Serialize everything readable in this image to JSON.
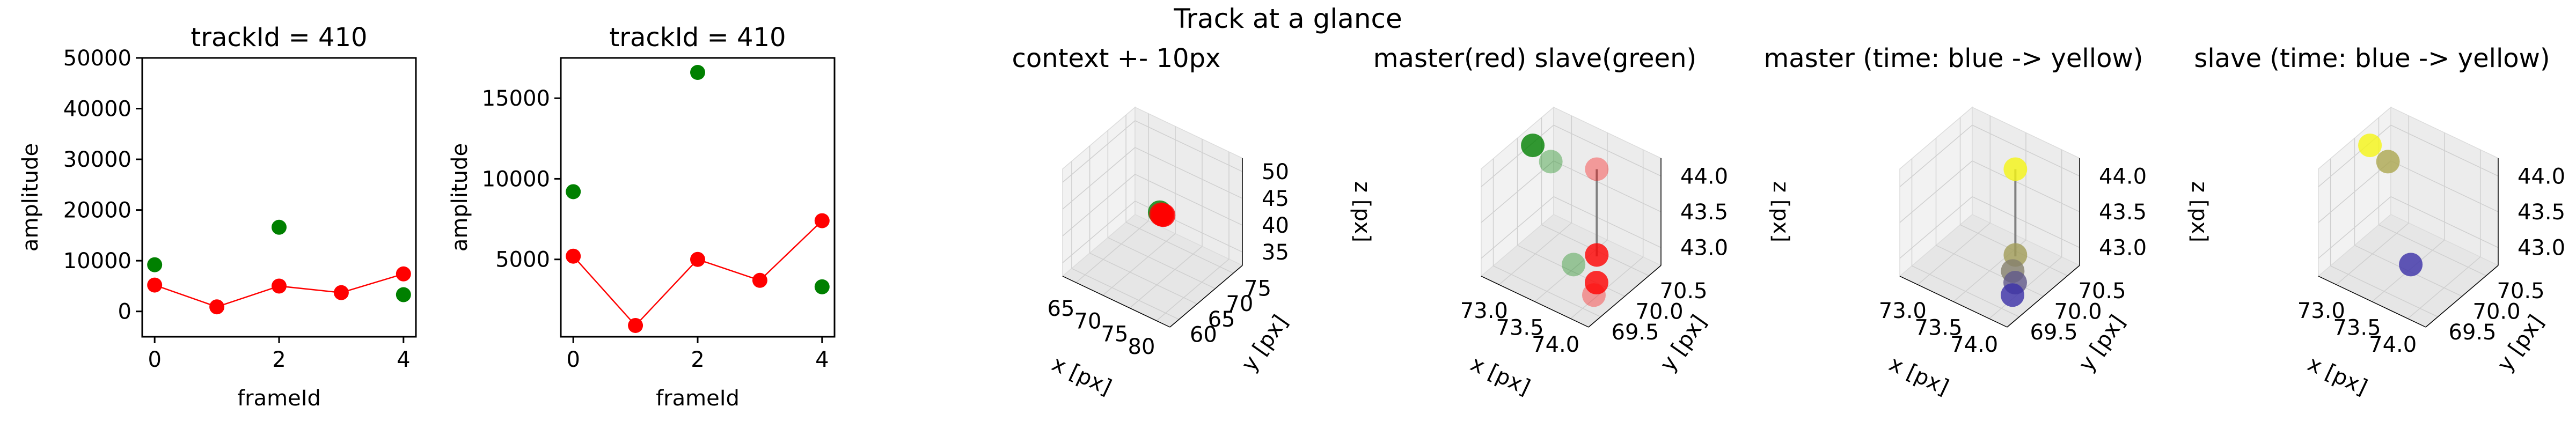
{
  "suptitle": "Track at a glance",
  "colors": {
    "master": "#ff0000",
    "slave": "#008000",
    "connector": "#808080",
    "time_start": "#3b30a8",
    "time_end": "#f5f514"
  },
  "chart_data": [
    {
      "type": "scatter",
      "title": "trackId = 410",
      "xlabel": "frameId",
      "ylabel": "amplitude",
      "xlim": [
        -0.2,
        4.2
      ],
      "ylim": [
        -5000,
        50000
      ],
      "xticks": [
        "0",
        "2",
        "4"
      ],
      "yticks": [
        "0",
        "10000",
        "20000",
        "30000",
        "40000",
        "50000"
      ],
      "grid": false,
      "series": [
        {
          "role": "master",
          "x": [
            0,
            1,
            2,
            3,
            4
          ],
          "y": [
            5200,
            900,
            5000,
            3700,
            7400
          ],
          "line": true
        },
        {
          "role": "slave",
          "x": [
            0,
            2,
            4
          ],
          "y": [
            9200,
            16600,
            3300
          ],
          "line": false
        }
      ]
    },
    {
      "type": "scatter",
      "title": "trackId = 410",
      "xlabel": "frameId",
      "ylabel": "amplitude",
      "xlim": [
        -0.2,
        4.2
      ],
      "ylim": [
        200,
        17500
      ],
      "xticks": [
        "0",
        "2",
        "4"
      ],
      "yticks": [
        "5000",
        "10000",
        "15000"
      ],
      "grid": false,
      "series": [
        {
          "role": "master",
          "x": [
            0,
            1,
            2,
            3,
            4
          ],
          "y": [
            5200,
            900,
            5000,
            3700,
            7400
          ],
          "line": true
        },
        {
          "role": "slave",
          "x": [
            0,
            2,
            4
          ],
          "y": [
            9200,
            16600,
            3300
          ],
          "line": false
        }
      ]
    },
    {
      "type": "scatter3d",
      "title": "context +- 10px",
      "xlabel": "x [px]",
      "ylabel": "y [px]",
      "zlabel": "z [px]",
      "xticks": [
        "65",
        "70",
        "75",
        "80"
      ],
      "yticks": [
        "60",
        "65",
        "70",
        "75"
      ],
      "zticks": [
        "35",
        "40",
        "45",
        "50"
      ],
      "xlim": [
        62,
        83
      ],
      "ylim": [
        58,
        80
      ],
      "zlim": [
        32,
        53
      ],
      "points": [
        {
          "x": 73.2,
          "y": 70.1,
          "z": 43.2,
          "role": "slave"
        },
        {
          "x": 73.8,
          "y": 70.0,
          "z": 43.0,
          "role": "master"
        },
        {
          "x": 73.9,
          "y": 70.2,
          "z": 42.9,
          "role": "master"
        },
        {
          "x": 73.6,
          "y": 69.9,
          "z": 43.1,
          "role": "master"
        }
      ]
    },
    {
      "type": "scatter3d",
      "title": "master(red) slave(green)",
      "xlabel": "x [px]",
      "ylabel": "y [px]",
      "zlabel": "z [px]",
      "xticks": [
        "73.0",
        "73.5",
        "74.0"
      ],
      "yticks": [
        "69.5",
        "70.0",
        "70.5"
      ],
      "zticks": [
        "43.0",
        "43.5",
        "44.0"
      ],
      "xlim": [
        72.8,
        74.2
      ],
      "ylim": [
        69.3,
        70.7
      ],
      "zlim": [
        42.8,
        44.3
      ],
      "points": [
        {
          "x": 73.0,
          "y": 70.0,
          "z": 44.3,
          "role": "slave"
        },
        {
          "x": 73.1,
          "y": 70.2,
          "z": 44.0,
          "role": "slave",
          "faded": true
        },
        {
          "x": 73.6,
          "y": 69.9,
          "z": 43.0,
          "role": "slave",
          "faded": true
        },
        {
          "x": 73.7,
          "y": 70.2,
          "z": 44.2,
          "role": "master",
          "faded": true,
          "stem": true
        },
        {
          "x": 73.7,
          "y": 70.2,
          "z": 43.0,
          "role": "master"
        },
        {
          "x": 73.9,
          "y": 69.9,
          "z": 42.9,
          "role": "master"
        },
        {
          "x": 74.0,
          "y": 69.7,
          "z": 42.9,
          "role": "master",
          "faded": true
        }
      ]
    },
    {
      "type": "scatter3d",
      "title": "master (time: blue -> yellow)",
      "xlabel": "x [px]",
      "ylabel": "y [px]",
      "zlabel": "z [px]",
      "xticks": [
        "73.0",
        "73.5",
        "74.0"
      ],
      "yticks": [
        "69.5",
        "70.0",
        "70.5"
      ],
      "zticks": [
        "43.0",
        "43.5",
        "44.0"
      ],
      "xlim": [
        72.8,
        74.2
      ],
      "ylim": [
        69.3,
        70.7
      ],
      "zlim": [
        42.8,
        44.3
      ],
      "points": [
        {
          "x": 73.7,
          "y": 70.2,
          "z": 44.2,
          "t": 1.0,
          "stem": true
        },
        {
          "x": 73.7,
          "y": 70.2,
          "z": 43.0,
          "t": 0.55
        },
        {
          "x": 73.8,
          "y": 70.0,
          "z": 42.95,
          "t": 0.4
        },
        {
          "x": 73.9,
          "y": 69.9,
          "z": 42.9,
          "t": 0.2
        },
        {
          "x": 74.0,
          "y": 69.7,
          "z": 42.9,
          "t": 0.0
        }
      ]
    },
    {
      "type": "scatter3d",
      "title": "slave (time: blue -> yellow)",
      "xlabel": "x [px]",
      "ylabel": "y [px]",
      "zlabel": "z [px]",
      "xticks": [
        "73.0",
        "73.5",
        "74.0"
      ],
      "yticks": [
        "69.5",
        "70.0",
        "70.5"
      ],
      "zticks": [
        "43.0",
        "43.5",
        "44.0"
      ],
      "xlim": [
        72.8,
        74.2
      ],
      "ylim": [
        69.3,
        70.7
      ],
      "zlim": [
        42.8,
        44.3
      ],
      "points": [
        {
          "x": 73.0,
          "y": 70.0,
          "z": 44.3,
          "t": 1.0
        },
        {
          "x": 73.1,
          "y": 70.2,
          "z": 44.0,
          "t": 0.6
        },
        {
          "x": 73.6,
          "y": 69.9,
          "z": 43.0,
          "t": 0.0
        }
      ]
    }
  ]
}
